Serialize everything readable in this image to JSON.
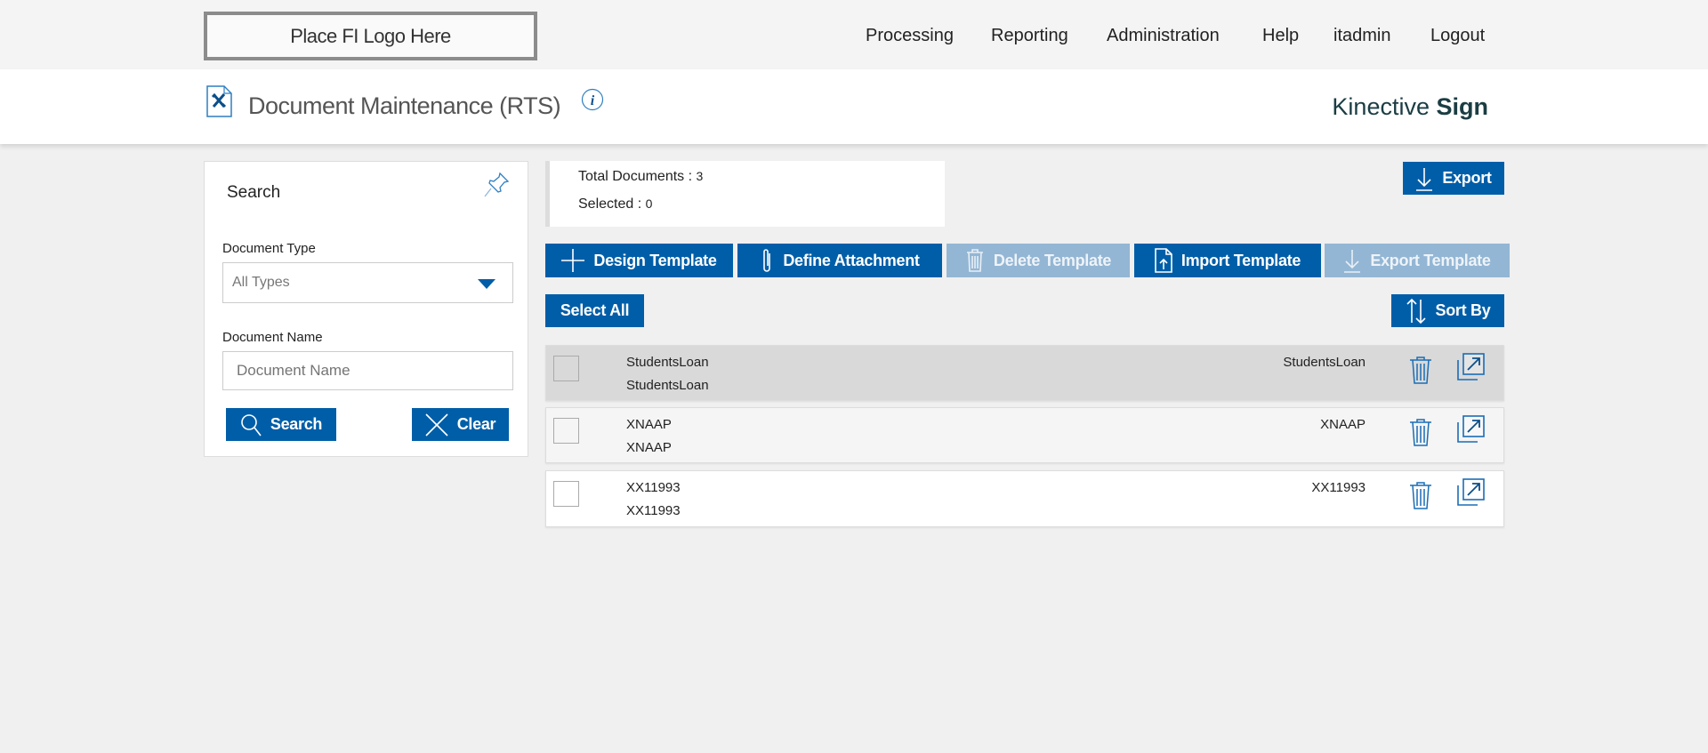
{
  "topbar": {
    "logo_text": "Place FI Logo Here",
    "nav": [
      "Processing",
      "Reporting",
      "Administration",
      "Help",
      "itadmin",
      "Logout"
    ]
  },
  "header": {
    "title": "Document Maintenance (RTS)",
    "brand_light": "Kinective",
    "brand_bold": "Sign"
  },
  "search": {
    "title": "Search",
    "doc_type_label": "Document Type",
    "doc_type_value": "All Types",
    "doc_name_label": "Document Name",
    "doc_name_placeholder": "Document Name",
    "search_button": "Search",
    "clear_button": "Clear"
  },
  "summary": {
    "total_label": "Total Documents : ",
    "total": "3",
    "selected_label": "Selected : ",
    "selected": "0"
  },
  "export_button": "Export",
  "toolbar": [
    {
      "label": "Design Template",
      "enabled": true
    },
    {
      "label": "Define Attachment",
      "enabled": true
    },
    {
      "label": "Delete Template",
      "enabled": false
    },
    {
      "label": "Import Template",
      "enabled": true
    },
    {
      "label": "Export Template",
      "enabled": false
    }
  ],
  "select_all": "Select All",
  "sort_by": "Sort By",
  "rows": [
    {
      "name": "StudentsLoan",
      "desc": "StudentsLoan",
      "type": "StudentsLoan"
    },
    {
      "name": "XNAAP",
      "desc": "XNAAP",
      "type": "XNAAP"
    },
    {
      "name": "XX11993",
      "desc": "XX11993",
      "type": "XX11993"
    }
  ],
  "colors": {
    "primary": "#005ea8",
    "disabled": "#93b6d4",
    "row_highlight": "#d9d9d9"
  }
}
